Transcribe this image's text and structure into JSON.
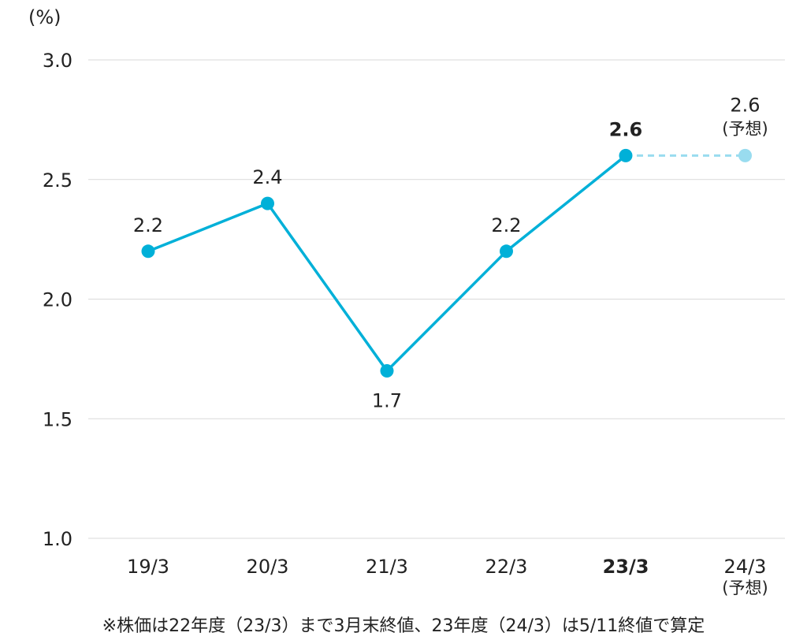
{
  "chart_data": {
    "type": "line",
    "unit_label": "(%)",
    "ylim": [
      1.0,
      3.0
    ],
    "yticks": [
      "1.0",
      "1.5",
      "2.0",
      "2.5",
      "3.0"
    ],
    "grid": true,
    "categories": [
      "19/3",
      "20/3",
      "21/3",
      "22/3",
      "23/3",
      "24/3"
    ],
    "category_notes": [
      "",
      "",
      "",
      "",
      "",
      "(予想)"
    ],
    "bold_category": "23/3",
    "series": [
      {
        "values": [
          2.2,
          2.4,
          1.7,
          2.2,
          2.6,
          2.6
        ],
        "labels": [
          "2.2",
          "2.4",
          "1.7",
          "2.2",
          "2.6",
          "2.6"
        ],
        "label_notes": [
          "",
          "",
          "",
          "",
          "",
          "(予想)"
        ],
        "forecast_from_index": 4,
        "color": "#00b0d8",
        "forecast_color": "#99dcef"
      }
    ],
    "footnote": "※株価は22年度（23/3）まで3月末終値、23年度（24/3）は5/11終値で算定"
  }
}
